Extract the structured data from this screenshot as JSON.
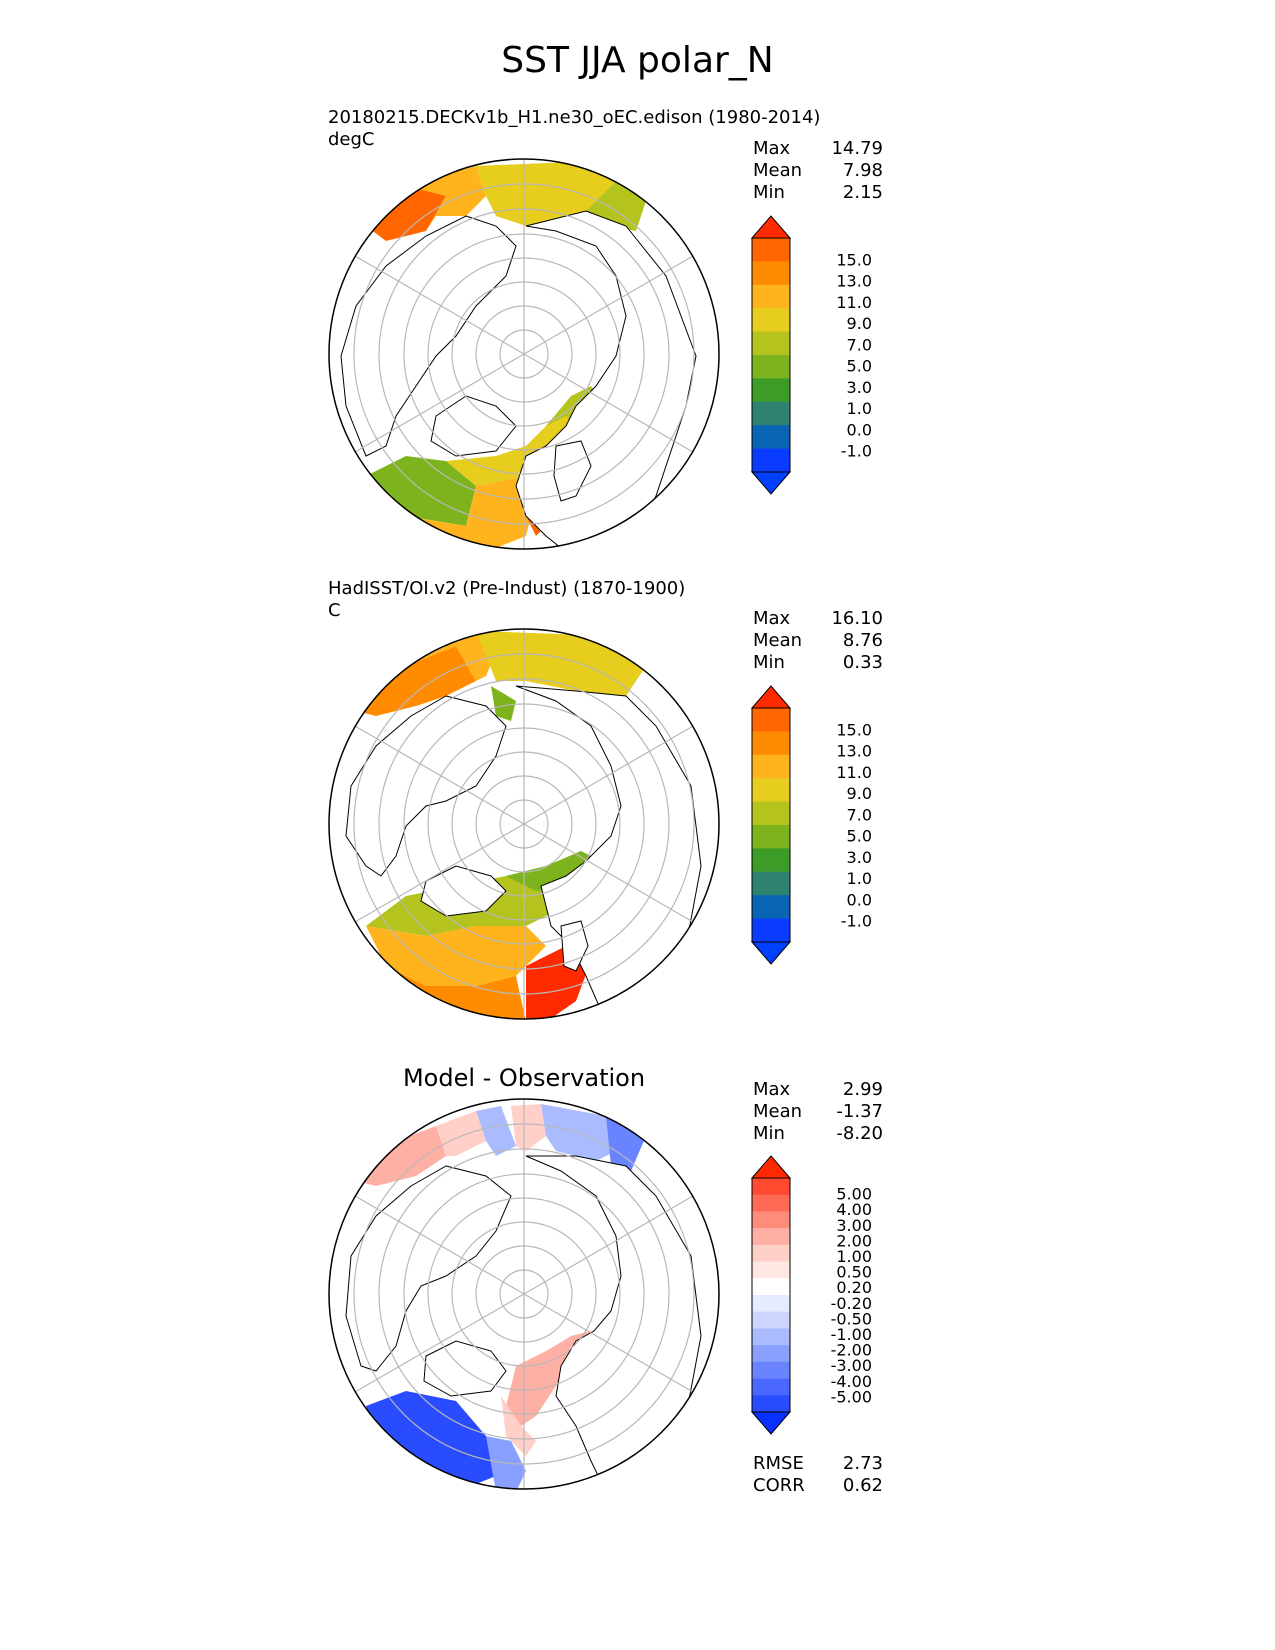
{
  "figure": {
    "title": "SST JJA polar_N"
  },
  "panels": [
    {
      "id": "model",
      "title": "20180215.DECKv1b_H1.ne30_oEC.edison (1980-2014)",
      "units": "degC",
      "stats": [
        [
          "Max",
          "14.79"
        ],
        [
          "Mean",
          "7.98"
        ],
        [
          "Min",
          "2.15"
        ]
      ]
    },
    {
      "id": "obs",
      "title": "HadISST/OI.v2 (Pre-Indust) (1870-1900)",
      "units": "C",
      "stats": [
        [
          "Max",
          "16.10"
        ],
        [
          "Mean",
          "8.76"
        ],
        [
          "Min",
          "0.33"
        ]
      ]
    },
    {
      "id": "diff",
      "title": "Model - Observation",
      "stats": [
        [
          "Max",
          "2.99"
        ],
        [
          "Mean",
          "-1.37"
        ],
        [
          "Min",
          "-8.20"
        ]
      ],
      "extra_stats": [
        [
          "RMSE",
          "2.73"
        ],
        [
          "CORR",
          "0.62"
        ]
      ]
    }
  ],
  "colorbars": {
    "sst": {
      "labels": [
        "15.0",
        "13.0",
        "11.0",
        "9.0",
        "7.0",
        "5.0",
        "3.0",
        "1.0",
        "0.0",
        "-1.0"
      ],
      "colors": [
        "#ff2a00",
        "#ff6600",
        "#ff8c00",
        "#ffb41e",
        "#e6cd1e",
        "#b4c31e",
        "#7db41e",
        "#3c9c28",
        "#2d8270",
        "#0a64b4",
        "#0a3cff",
        "#0040ff"
      ]
    },
    "diff": {
      "labels": [
        "5.00",
        "4.00",
        "3.00",
        "2.00",
        "1.00",
        "0.50",
        "0.20",
        "-0.20",
        "-0.50",
        "-1.00",
        "-2.00",
        "-3.00",
        "-4.00",
        "-5.00"
      ],
      "colors": [
        "#ff2800",
        "#ff4a30",
        "#ff6a55",
        "#ff8c7a",
        "#ffb0a5",
        "#ffd0c8",
        "#ffe8e4",
        "#ffffff",
        "#e6ebff",
        "#ccd6ff",
        "#aabcff",
        "#8aa0ff",
        "#6a84ff",
        "#4a68ff",
        "#2a4cff",
        "#0a30ff"
      ]
    }
  },
  "map_colors": {
    "land": "#ffffff",
    "coast": "#000000",
    "grid": "#b8b8b8"
  }
}
